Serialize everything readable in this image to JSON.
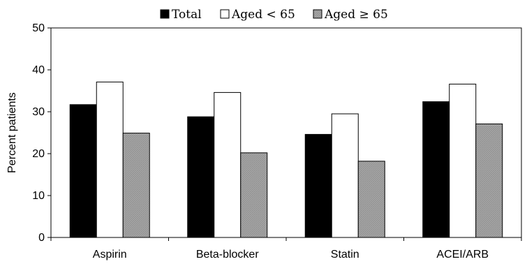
{
  "chart_data": {
    "type": "bar",
    "categories": [
      "Aspirin",
      "Beta-blocker",
      "Statin",
      "ACEI/ARB"
    ],
    "series": [
      {
        "name": "Total",
        "values": [
          31.7,
          28.8,
          24.6,
          32.4
        ],
        "color": "#000000"
      },
      {
        "name": "Aged < 65",
        "values": [
          37.1,
          34.6,
          29.5,
          36.6
        ],
        "color": "#ffffff"
      },
      {
        "name": "Aged ≥ 65",
        "values": [
          24.9,
          20.2,
          18.2,
          27.1
        ],
        "color": "#a6a6a6"
      }
    ],
    "title": "",
    "xlabel": "",
    "ylabel": "Percent patients",
    "ylim": [
      0,
      50
    ],
    "yticks": [
      "0",
      "10",
      "20",
      "30",
      "40",
      "50"
    ],
    "grid": false,
    "legend_position": "top-center"
  }
}
